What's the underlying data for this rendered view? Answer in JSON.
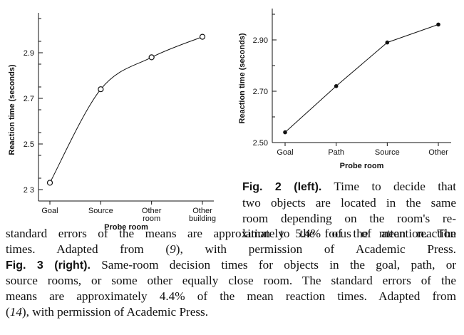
{
  "chart_data": [
    {
      "type": "line",
      "figure": "Fig. 2",
      "xlabel": "Probe room",
      "ylabel": "Reaction time (seconds)",
      "categories": [
        "Goal",
        "Source",
        "Other\nroom",
        "Other\nbuilding"
      ],
      "category_lines": [
        [
          "Goal"
        ],
        [
          "Source"
        ],
        [
          "Other",
          "room"
        ],
        [
          "Other",
          "building"
        ]
      ],
      "values": [
        2.33,
        2.74,
        2.88,
        2.97
      ],
      "ylim": [
        2.25,
        3.05
      ],
      "yticks": [
        2.3,
        2.5,
        2.7,
        2.9
      ],
      "ytick_labels": [
        "2 3",
        "2.5",
        "2.7",
        "2.9"
      ],
      "marker": "open-circle",
      "curve": "smooth",
      "grid": false
    },
    {
      "type": "line",
      "figure": "Fig. 3",
      "xlabel": "Probe room",
      "ylabel": "Reaction time (seconds)",
      "categories": [
        "Goal",
        "Path",
        "Source",
        "Other"
      ],
      "values": [
        2.54,
        2.72,
        2.89,
        2.96
      ],
      "ylim": [
        2.5,
        3.0
      ],
      "yticks": [
        2.5,
        2.7,
        2.9
      ],
      "ytick_labels": [
        "2.50",
        "2.70",
        "2.90"
      ],
      "marker": "filled-circle",
      "curve": "straight",
      "grid": false
    }
  ],
  "caption": {
    "fig2_label": "Fig. 2 (left).",
    "fig2_lines": [
      "Time to decide that",
      "two objects are located in the same",
      "room depending on the room's re-",
      "lation to the focus of attention. The"
    ],
    "full_lines": [
      "standard errors of the means are approximately 5.4% of the mean reaction",
      "times. Adapted from ("
    ],
    "ref1": "9",
    "ref1_after": "), with permission of Academic Press.",
    "fig3_label": "Fig. 3 (right).",
    "fig3_line1": "Same-room decision times for objects in the goal, path, or",
    "fig3_lines": [
      "source rooms, or some other equally close room. The standard errors of the",
      "means are approximately 4.4% of the mean reaction times. Adapted from"
    ],
    "ref2_open": "(",
    "ref2": "14",
    "ref2_after": "), with permission of Academic Press."
  }
}
